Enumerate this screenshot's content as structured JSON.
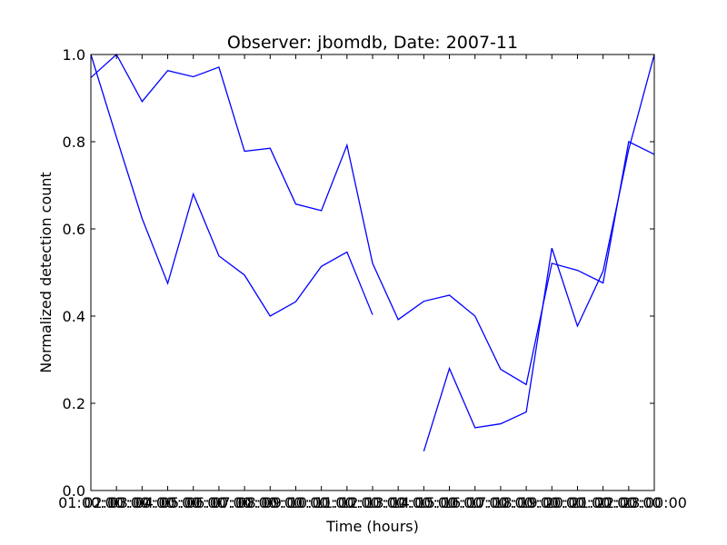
{
  "chart_data": {
    "type": "line",
    "title": "Observer: jbomdb, Date: 2007-11",
    "xlabel": "Time (hours)",
    "ylabel": "Normalized detection count",
    "xlim": [
      1,
      23
    ],
    "ylim": [
      0,
      1
    ],
    "grid": false,
    "legend": "none",
    "x_ticks": [
      {
        "value": 1,
        "label": "01:00:00"
      },
      {
        "value": 3,
        "label": "03:00:00"
      },
      {
        "value": 5,
        "label": "05:00:00"
      },
      {
        "value": 7,
        "label": "07:00:00"
      },
      {
        "value": 9,
        "label": "09:00:00"
      },
      {
        "value": 11,
        "label": "11:00:00"
      },
      {
        "value": 13,
        "label": "13:00:00"
      },
      {
        "value": 15,
        "label": "15:00:00"
      },
      {
        "value": 17,
        "label": "17:00:00"
      },
      {
        "value": 19,
        "label": "19:00:00"
      },
      {
        "value": 21,
        "label": "21:00:00"
      },
      {
        "value": 23,
        "label": "23:00:00"
      }
    ],
    "x_ticks_odd": [
      {
        "value": 2,
        "label": "02:00:00"
      },
      {
        "value": 4,
        "label": "04:00:00"
      },
      {
        "value": 6,
        "label": "06:00:00"
      },
      {
        "value": 8,
        "label": "08:00:00"
      },
      {
        "value": 10,
        "label": "10:00:00"
      },
      {
        "value": 12,
        "label": "12:00:00"
      },
      {
        "value": 14,
        "label": "14:00:00"
      },
      {
        "value": 16,
        "label": "16:00:00"
      },
      {
        "value": 18,
        "label": "18:00:00"
      },
      {
        "value": 20,
        "label": "20:00:00"
      },
      {
        "value": 22,
        "label": "22:00:00"
      }
    ],
    "y_ticks": [
      {
        "value": 0,
        "label": "0.0"
      },
      {
        "value": 0.2,
        "label": "0.2"
      },
      {
        "value": 0.4,
        "label": "0.4"
      },
      {
        "value": 0.6,
        "label": "0.6"
      },
      {
        "value": 0.8,
        "label": "0.8"
      },
      {
        "value": 1.0,
        "label": "1.0"
      }
    ],
    "series_color": "#0000ff",
    "series": [
      {
        "segments": [
          [
            [
              1,
              0.947
            ],
            [
              2,
              1.0
            ],
            [
              3,
              0.892
            ],
            [
              4,
              0.963
            ],
            [
              5,
              0.949
            ],
            [
              6,
              0.971
            ],
            [
              7,
              0.778
            ],
            [
              8,
              0.785
            ],
            [
              9,
              0.657
            ],
            [
              10,
              0.642
            ],
            [
              11,
              0.792
            ],
            [
              12,
              0.521
            ],
            [
              13,
              0.392
            ],
            [
              14,
              0.434
            ],
            [
              15,
              0.448
            ],
            [
              16,
              0.4
            ],
            [
              17,
              0.278
            ],
            [
              18,
              0.243
            ],
            [
              19,
              0.521
            ],
            [
              20,
              0.505
            ],
            [
              21,
              0.476
            ],
            [
              22,
              0.8
            ],
            [
              23,
              0.771
            ]
          ]
        ]
      },
      {
        "segments": [
          [
            [
              1,
              1.0
            ],
            [
              2,
              0.81
            ],
            [
              3,
              0.624
            ],
            [
              4,
              0.475
            ],
            [
              5,
              0.68
            ],
            [
              6,
              0.538
            ],
            [
              7,
              0.494
            ],
            [
              8,
              0.4
            ],
            [
              9,
              0.433
            ],
            [
              10,
              0.514
            ],
            [
              11,
              0.547
            ],
            [
              12,
              0.403
            ]
          ],
          [
            [
              14,
              0.09
            ],
            [
              15,
              0.28
            ],
            [
              16,
              0.144
            ],
            [
              17,
              0.153
            ],
            [
              18,
              0.18
            ],
            [
              19,
              0.556
            ],
            [
              20,
              0.377
            ],
            [
              21,
              0.503
            ],
            [
              22,
              0.782
            ],
            [
              23,
              1.0
            ]
          ]
        ]
      }
    ]
  }
}
